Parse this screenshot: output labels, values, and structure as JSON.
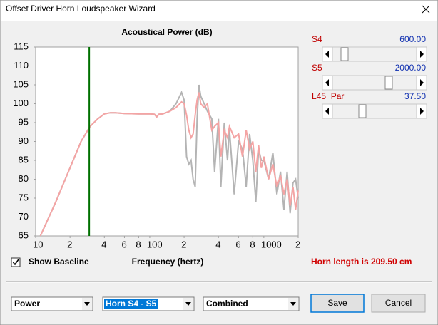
{
  "window": {
    "title": "Offset Driver Horn Loudspeaker Wizard"
  },
  "chart_data": {
    "type": "line",
    "title": "Acoustical Power (dB)",
    "x_label": "Frequency (hertz)",
    "log_x": true,
    "grid": false,
    "xlim": [
      10,
      2000
    ],
    "ylim": [
      65,
      115
    ],
    "xticks": [
      10,
      {
        "value": 20,
        "label": "2"
      },
      {
        "value": 40,
        "label": "4"
      },
      {
        "value": 60,
        "label": "6"
      },
      {
        "value": 80,
        "label": "8"
      },
      100,
      {
        "value": 200,
        "label": "2"
      },
      {
        "value": 400,
        "label": "4"
      },
      {
        "value": 600,
        "label": "6"
      },
      {
        "value": 800,
        "label": "8"
      },
      1000,
      {
        "value": 2000,
        "label": "2"
      }
    ],
    "yticks": [
      65,
      70,
      75,
      80,
      85,
      90,
      95,
      100,
      105,
      110,
      115
    ],
    "vline": {
      "x": 29.5,
      "color": "#007000"
    },
    "x": [
      11,
      15,
      20,
      25,
      30,
      35,
      40,
      45,
      50,
      60,
      80,
      100,
      110,
      115,
      120,
      130,
      150,
      170,
      190,
      200,
      210,
      220,
      230,
      240,
      250,
      260,
      270,
      280,
      300,
      320,
      350,
      370,
      400,
      420,
      450,
      480,
      500,
      550,
      600,
      650,
      700,
      750,
      800,
      850,
      900,
      950,
      1000,
      1100,
      1200,
      1300,
      1400,
      1500,
      1600,
      1700,
      1800,
      1900,
      2000
    ],
    "series": [
      {
        "color": "#b4b4b4",
        "values": [
          65,
          74,
          83,
          90,
          94,
          96,
          97.3,
          97.6,
          97.6,
          97.4,
          97.3,
          97.3,
          97.2,
          96.5,
          97.2,
          97.3,
          98,
          100,
          103,
          101,
          86,
          84,
          85,
          80,
          78,
          96,
          105,
          102,
          100,
          98,
          96,
          82,
          96,
          78,
          95,
          85,
          93,
          76,
          90,
          88,
          78,
          92,
          85,
          74,
          88,
          85,
          85,
          80,
          87,
          76,
          82,
          72,
          82,
          71,
          79,
          80,
          75
        ]
      },
      {
        "color": "#f4a4a4",
        "values": [
          65,
          74,
          83,
          90,
          94,
          96,
          97.3,
          97.6,
          97.6,
          97.4,
          97.3,
          97.3,
          97.2,
          96.5,
          97.2,
          97.3,
          98,
          99,
          100.5,
          100,
          97,
          93,
          91,
          92,
          97,
          101,
          103,
          100,
          99,
          100,
          93,
          94,
          95,
          86,
          93,
          91,
          94,
          91,
          92,
          86,
          93,
          88,
          90,
          82,
          89,
          83,
          86,
          80,
          84,
          78,
          81,
          76,
          80,
          73,
          78,
          72,
          77
        ]
      }
    ]
  },
  "sliders": [
    {
      "label": "S4",
      "value": "600.00"
    },
    {
      "label": "S5",
      "value": "2000.00"
    },
    {
      "label": "L45  Par",
      "value": "37.50"
    }
  ],
  "checkbox": {
    "label": "Show Baseline",
    "checked": true
  },
  "status": "Horn length is 209.50 cm",
  "dropdowns": [
    "Power",
    "Horn S4 - S5",
    "Combined"
  ],
  "buttons": [
    "Save",
    "Cancel"
  ]
}
